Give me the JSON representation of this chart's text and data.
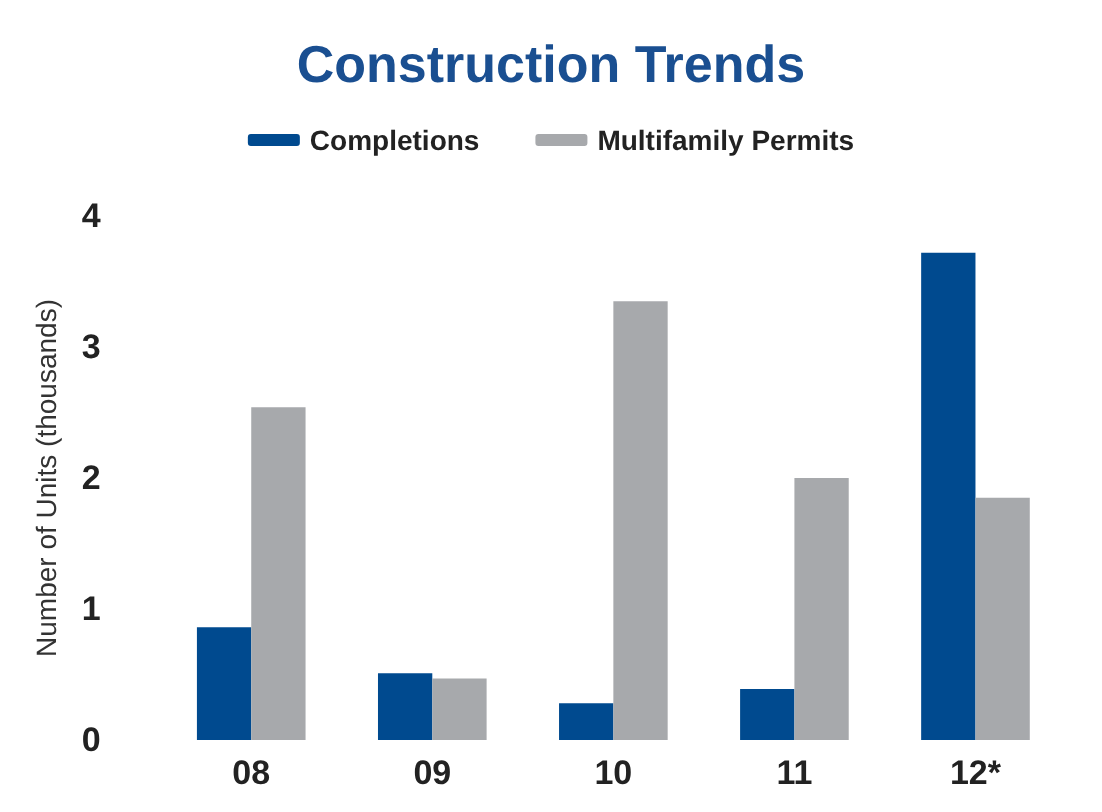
{
  "chart_data": {
    "type": "bar",
    "title": "Construction Trends",
    "ylabel": "Number of Units (thousands)",
    "categories": [
      "08",
      "09",
      "10",
      "11",
      "12*"
    ],
    "series": [
      {
        "name": "Completions",
        "color": "#004a8f",
        "values": [
          0.86,
          0.51,
          0.28,
          0.39,
          3.72
        ]
      },
      {
        "name": "Multifamily Permits",
        "color": "#a7a9ac",
        "values": [
          2.54,
          0.47,
          3.35,
          2.0,
          1.85
        ]
      }
    ],
    "ylim": [
      0,
      4
    ],
    "yticks": [
      0,
      1,
      2,
      3,
      4
    ],
    "grid": false,
    "legend": "top"
  }
}
